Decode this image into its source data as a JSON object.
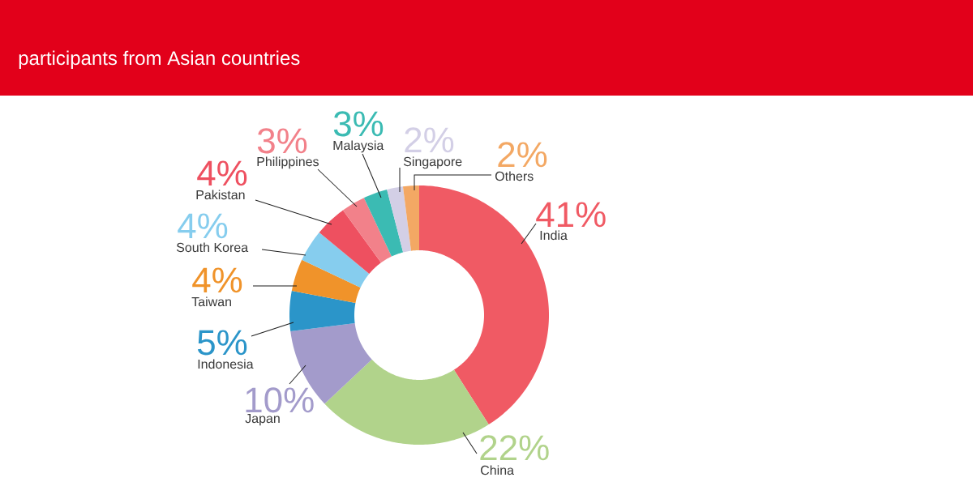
{
  "chart_data": {
    "type": "donut",
    "title": "participants from Asian countries",
    "categories": [
      "India",
      "China",
      "Japan",
      "Indonesia",
      "Taiwan",
      "South Korea",
      "Pakistan",
      "Philippines",
      "Malaysia",
      "Singapore",
      "Others"
    ],
    "values": [
      41,
      22,
      10,
      5,
      4,
      4,
      4,
      3,
      3,
      2,
      2
    ],
    "colors": [
      "#f05a64",
      "#b1d38b",
      "#a39bcb",
      "#2b95c9",
      "#f0932a",
      "#86cdee",
      "#ee5060",
      "#f2818a",
      "#3bbbb3",
      "#d3cfe6",
      "#f3a864"
    ],
    "value_labels": [
      "41%",
      "22%",
      "10%",
      "5%",
      "4%",
      "4%",
      "4%",
      "3%",
      "3%",
      "2%",
      "2%"
    ]
  }
}
